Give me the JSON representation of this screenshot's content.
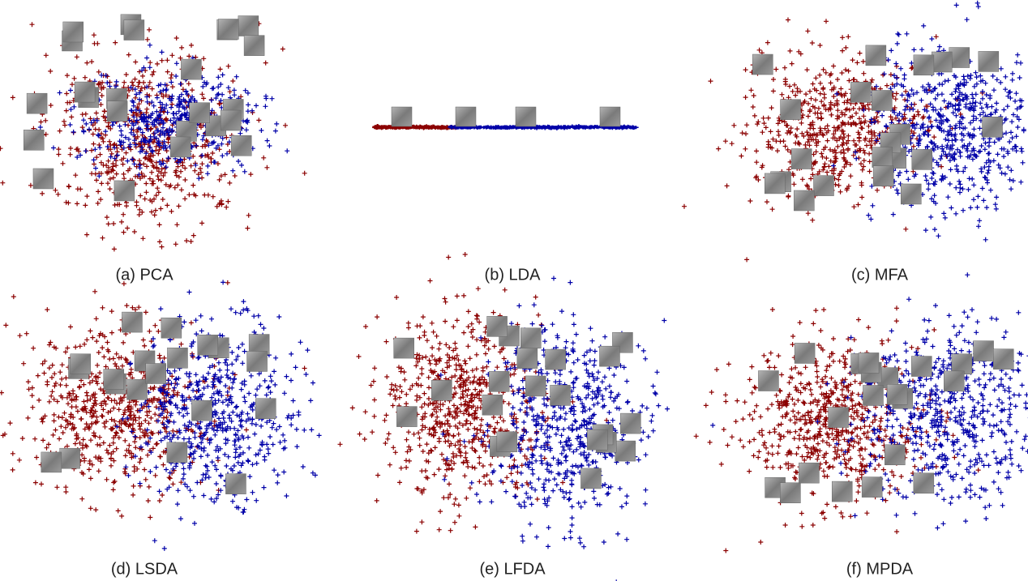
{
  "figure": {
    "panels": [
      {
        "caption": "(a) PCA"
      },
      {
        "caption": "(b) LDA"
      },
      {
        "caption": "(c) MFA"
      },
      {
        "caption": "(d) LSDA"
      },
      {
        "caption": "(e) LFDA"
      },
      {
        "caption": "(f) MPDA"
      }
    ]
  }
}
